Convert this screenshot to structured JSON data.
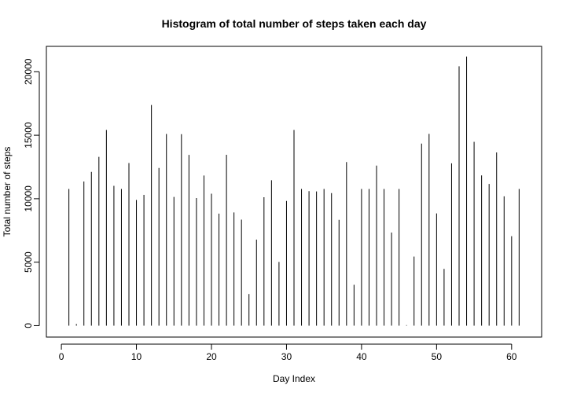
{
  "chart_data": {
    "type": "bar",
    "title": "Histogram of total number of steps taken each day",
    "xlabel": "Day Index",
    "ylabel": "Total number of steps",
    "xlim": [
      -2,
      64
    ],
    "ylim": [
      -900,
      22000
    ],
    "xticks": [
      0,
      10,
      20,
      30,
      40,
      50,
      60
    ],
    "yticks": [
      0,
      5000,
      10000,
      15000,
      20000
    ],
    "grid": false,
    "legend": "none",
    "x": [
      1,
      2,
      3,
      4,
      5,
      6,
      7,
      8,
      9,
      10,
      11,
      12,
      13,
      14,
      15,
      16,
      17,
      18,
      19,
      20,
      21,
      22,
      23,
      24,
      25,
      26,
      27,
      28,
      29,
      30,
      31,
      32,
      33,
      34,
      35,
      36,
      37,
      38,
      39,
      40,
      41,
      42,
      43,
      44,
      45,
      46,
      47,
      48,
      49,
      50,
      51,
      52,
      53,
      54,
      55,
      56,
      57,
      58,
      59,
      60,
      61
    ],
    "values": [
      10766,
      126,
      11352,
      12116,
      13294,
      15420,
      11015,
      10766,
      12811,
      9900,
      10304,
      17382,
      12426,
      15098,
      10139,
      15084,
      13452,
      10056,
      11829,
      10395,
      8821,
      13460,
      8918,
      8355,
      2492,
      6778,
      10119,
      11458,
      5018,
      9819,
      15414,
      10766,
      10600,
      10571,
      10766,
      10439,
      8334,
      12883,
      3219,
      10766,
      10766,
      12608,
      10765,
      7336,
      10766,
      41,
      5441,
      14339,
      15110,
      8841,
      4472,
      12787,
      20427,
      21194,
      14478,
      11834,
      11162,
      13646,
      10183,
      7047,
      10766
    ],
    "bar_color": "#000000"
  }
}
